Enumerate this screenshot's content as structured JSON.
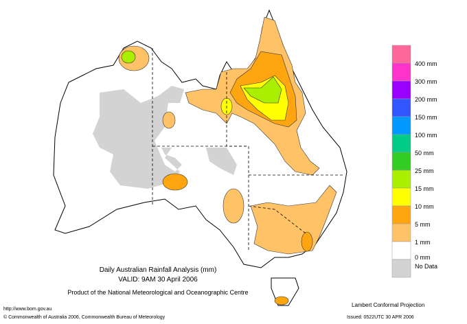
{
  "title": {
    "line1": "Daily Australian Rainfall Analysis (mm)",
    "line2": "VALID: 9AM 30 April 2006",
    "line3": "Product of the National Meteorological and Oceanographic Centre"
  },
  "footer": {
    "url": "http://www.bom.gov.au",
    "copyright": "© Commonwealth of Australia 2006, Commonwealth Bureau of Meteorology",
    "projection": "Lambert Conformal Projection",
    "issued": "Issued: 0522UTC 30 APR 2006"
  },
  "legend": {
    "swatches": [
      "#ff6699",
      "#ff33cc",
      "#9900ff",
      "#3355ff",
      "#0099ff",
      "#00cc88",
      "#33cc22",
      "#aaee00",
      "#ffff00",
      "#ffa510",
      "#ffc266",
      "#ffffff",
      "#d3d3d3"
    ],
    "labels": [
      "400 mm",
      "300 mm",
      "200 mm",
      "150 mm",
      "100 mm",
      "50 mm",
      "25 mm",
      "15 mm",
      "10 mm",
      "5 mm",
      "1 mm",
      "0 mm",
      "No Data"
    ]
  }
}
